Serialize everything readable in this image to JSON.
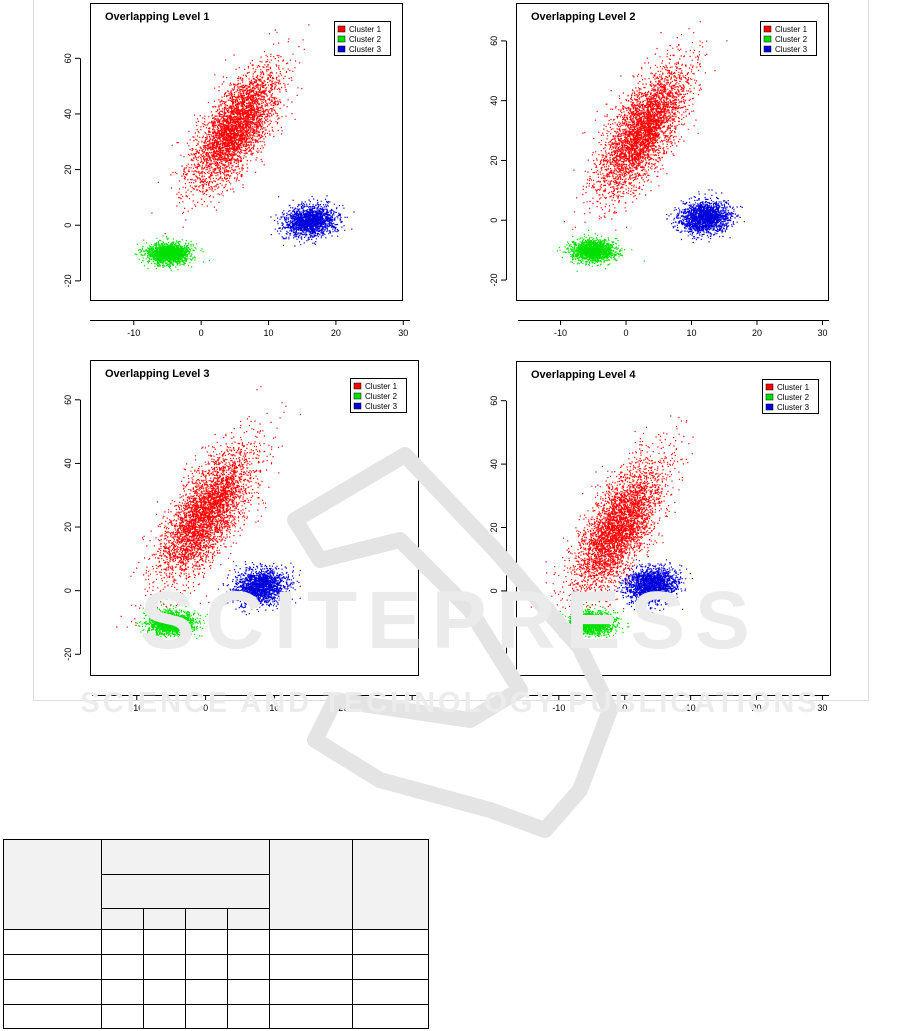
{
  "figure": {
    "legend_labels": [
      "Cluster 1",
      "Cluster 2",
      "Cluster 3"
    ],
    "colors": {
      "cluster1": "#ff0000",
      "cluster2": "#00e000",
      "cluster3": "#0000dd"
    }
  },
  "chart_data": [
    {
      "type": "scatter",
      "title": "Overlapping Level 1",
      "xlabel": "",
      "ylabel": "",
      "xlim": [
        -16.5,
        31
      ],
      "ylim": [
        -24,
        77
      ],
      "xticks": [
        "-10",
        "0",
        "10",
        "20",
        "30"
      ],
      "yticks": [
        "-20",
        "0",
        "20",
        "40",
        "60"
      ],
      "legend_position": "top-right",
      "grid": false,
      "series": [
        {
          "name": "Cluster 1",
          "center": [
            5,
            35
          ],
          "sd": [
            3.2,
            10.5
          ],
          "correlation": 0.7
        },
        {
          "name": "Cluster 2",
          "center": [
            -5,
            -10
          ],
          "sd": [
            1.6,
            1.8
          ],
          "correlation": 0
        },
        {
          "name": "Cluster 3",
          "center": [
            16,
            1.5
          ],
          "sd": [
            1.9,
            2.7
          ],
          "correlation": 0.1
        }
      ]
    },
    {
      "type": "scatter",
      "title": "Overlapping Level 2",
      "xlabel": "",
      "ylabel": "",
      "xlim": [
        -16.5,
        31
      ],
      "ylim": [
        -24,
        70
      ],
      "xticks": [
        "-10",
        "0",
        "10",
        "20",
        "30"
      ],
      "yticks": [
        "-20",
        "0",
        "20",
        "40",
        "60"
      ],
      "legend_position": "top-right",
      "grid": false,
      "series": [
        {
          "name": "Cluster 1",
          "center": [
            2.5,
            30
          ],
          "sd": [
            3.3,
            10.5
          ],
          "correlation": 0.7
        },
        {
          "name": "Cluster 2",
          "center": [
            -5,
            -10
          ],
          "sd": [
            1.6,
            1.8
          ],
          "correlation": 0
        },
        {
          "name": "Cluster 3",
          "center": [
            12,
            1
          ],
          "sd": [
            1.9,
            2.7
          ],
          "correlation": 0.1
        }
      ]
    },
    {
      "type": "scatter",
      "title": "Overlapping Level 3",
      "xlabel": "",
      "ylabel": "",
      "xlim": [
        -16.5,
        31
      ],
      "ylim": [
        -24,
        70
      ],
      "xticks": [
        "-10",
        "0",
        "10",
        "20",
        "30"
      ],
      "yticks": [
        "-20",
        "0",
        "20",
        "40",
        "60"
      ],
      "legend_position": "top-right",
      "grid": false,
      "series": [
        {
          "name": "Cluster 1",
          "center": [
            0,
            24
          ],
          "sd": [
            3.4,
            10.5
          ],
          "correlation": 0.7
        },
        {
          "name": "Cluster 2",
          "center": [
            -5,
            -10
          ],
          "sd": [
            1.6,
            1.8
          ],
          "correlation": 0
        },
        {
          "name": "Cluster 3",
          "center": [
            8,
            1.5
          ],
          "sd": [
            1.9,
            2.7
          ],
          "correlation": 0.1
        }
      ]
    },
    {
      "type": "scatter",
      "title": "Overlapping Level 4",
      "xlabel": "",
      "ylabel": "",
      "xlim": [
        -16.5,
        31
      ],
      "ylim": [
        -24,
        70
      ],
      "xticks": [
        "-10",
        "0",
        "10",
        "20",
        "30"
      ],
      "yticks": [
        "-20",
        "0",
        "20",
        "40",
        "60"
      ],
      "legend_position": "top-right",
      "grid": false,
      "series": [
        {
          "name": "Cluster 1",
          "center": [
            -1,
            20
          ],
          "sd": [
            3.4,
            10.5
          ],
          "correlation": 0.7
        },
        {
          "name": "Cluster 2",
          "center": [
            -5,
            -10
          ],
          "sd": [
            1.6,
            1.8
          ],
          "correlation": 0
        },
        {
          "name": "Cluster 3",
          "center": [
            4,
            2
          ],
          "sd": [
            1.9,
            2.7
          ],
          "correlation": 0.1
        }
      ]
    }
  ],
  "watermark": {
    "brand": "SCITEPRESS",
    "tagline": "SCIENCE AND TECHNOLOGY PUBLICATIONS"
  },
  "table": {
    "rows": 4,
    "columns": 7
  }
}
